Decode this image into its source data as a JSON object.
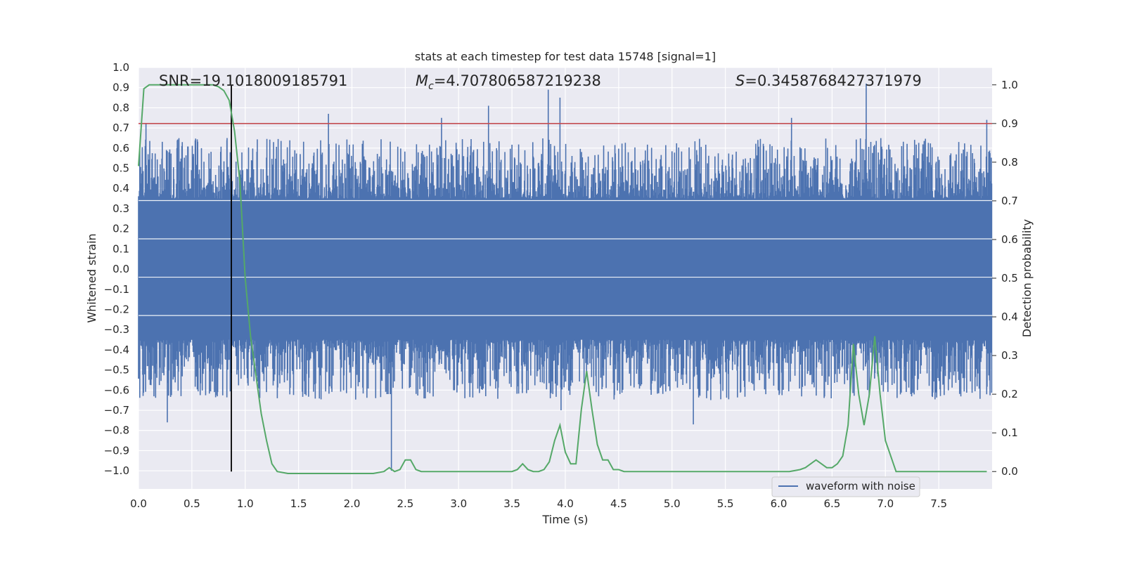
{
  "chart_data": {
    "type": "line",
    "title": "stats at each timestep for test data 15748 [signal=1]",
    "xlabel": "Time (s)",
    "ylabel_left": "Whitened strain",
    "ylabel_right": "Detection probability",
    "xlim": [
      0,
      8
    ],
    "ylim_left": [
      -1.09,
      1.0
    ],
    "ylim_right": [
      -0.045,
      1.045
    ],
    "x_ticks": [
      0.0,
      0.5,
      1.0,
      1.5,
      2.0,
      2.5,
      3.0,
      3.5,
      4.0,
      4.5,
      5.0,
      5.5,
      6.0,
      6.5,
      7.0,
      7.5
    ],
    "x_tick_labels": [
      "0.0",
      "0.5",
      "1.0",
      "1.5",
      "2.0",
      "2.5",
      "3.0",
      "3.5",
      "4.0",
      "4.5",
      "5.0",
      "5.5",
      "6.0",
      "6.5",
      "7.0",
      "7.5"
    ],
    "y_left_ticks": [
      1.0,
      0.9,
      0.8,
      0.7,
      0.6,
      0.5,
      0.4,
      0.3,
      0.2,
      0.1,
      0.0,
      -0.1,
      -0.2,
      -0.3,
      -0.4,
      -0.5,
      -0.6,
      -0.7,
      -0.8,
      -0.9,
      -1.0
    ],
    "y_left_tick_labels": [
      "1.0",
      "0.9",
      "0.8",
      "0.7",
      "0.6",
      "0.5",
      "0.4",
      "0.3",
      "0.2",
      "0.1",
      "0.0",
      "−0.1",
      "−0.2",
      "−0.3",
      "−0.4",
      "−0.5",
      "−0.6",
      "−0.7",
      "−0.8",
      "−0.9",
      "−1.0"
    ],
    "y_right_ticks": [
      1.0,
      0.9,
      0.8,
      0.7,
      0.6,
      0.5,
      0.4,
      0.3,
      0.2,
      0.1,
      0.0
    ],
    "y_right_tick_labels": [
      "1.0",
      "0.9",
      "0.8",
      "0.7",
      "0.6",
      "0.5",
      "0.4",
      "0.3",
      "0.2",
      "0.1",
      "0.0"
    ],
    "annotations": {
      "snr": "SNR=19.1018009185791",
      "mc_symbol": "M",
      "mc_sub": "c",
      "mc_value": "=4.707806587219238",
      "s_symbol": "S",
      "s_value": "=0.3458768427371979"
    },
    "legend": {
      "label": "waveform with noise",
      "placement": "lower-right"
    },
    "grid": true,
    "threshold_right": 0.9,
    "marker_time": 0.87,
    "waveform": {
      "name": "waveform with noise",
      "samples": 2048,
      "band": 0.35,
      "peaks": [
        {
          "t": 0.07,
          "v": 0.72
        },
        {
          "t": 0.27,
          "v": -0.76
        },
        {
          "t": 0.36,
          "v": 0.6
        },
        {
          "t": 0.83,
          "v": 0.65
        },
        {
          "t": 1.78,
          "v": 0.77
        },
        {
          "t": 2.37,
          "v": -1.0
        },
        {
          "t": 2.84,
          "v": 0.75
        },
        {
          "t": 3.28,
          "v": 0.81
        },
        {
          "t": 3.84,
          "v": 0.89
        },
        {
          "t": 3.95,
          "v": 0.85
        },
        {
          "t": 3.96,
          "v": -0.7
        },
        {
          "t": 5.2,
          "v": -0.77
        },
        {
          "t": 6.12,
          "v": 0.75
        },
        {
          "t": 6.82,
          "v": 0.92
        },
        {
          "t": 7.95,
          "v": 0.74
        }
      ]
    },
    "probability": {
      "x": [
        0.0,
        0.05,
        0.1,
        0.2,
        0.3,
        0.4,
        0.5,
        0.6,
        0.7,
        0.75,
        0.8,
        0.85,
        0.9,
        0.95,
        1.0,
        1.05,
        1.1,
        1.15,
        1.2,
        1.25,
        1.3,
        1.4,
        1.5,
        1.6,
        1.7,
        1.8,
        1.9,
        2.0,
        2.1,
        2.2,
        2.3,
        2.35,
        2.4,
        2.45,
        2.5,
        2.55,
        2.6,
        2.65,
        2.7,
        2.75,
        2.8,
        2.9,
        3.0,
        3.1,
        3.2,
        3.3,
        3.4,
        3.5,
        3.55,
        3.6,
        3.65,
        3.7,
        3.75,
        3.8,
        3.85,
        3.9,
        3.95,
        4.0,
        4.05,
        4.1,
        4.15,
        4.2,
        4.25,
        4.3,
        4.35,
        4.4,
        4.45,
        4.5,
        4.55,
        4.6,
        4.7,
        4.8,
        4.9,
        5.0,
        5.2,
        5.4,
        5.6,
        5.8,
        6.0,
        6.1,
        6.2,
        6.25,
        6.3,
        6.35,
        6.4,
        6.45,
        6.5,
        6.55,
        6.6,
        6.65,
        6.7,
        6.75,
        6.8,
        6.85,
        6.9,
        6.95,
        7.0,
        7.05,
        7.1,
        7.15,
        7.2,
        7.25,
        7.3,
        7.5,
        7.7,
        7.95
      ],
      "y": [
        0.79,
        0.99,
        1.0,
        1.0,
        1.0,
        1.0,
        1.0,
        1.0,
        1.0,
        0.995,
        0.985,
        0.96,
        0.88,
        0.75,
        0.5,
        0.35,
        0.25,
        0.15,
        0.08,
        0.02,
        0.0,
        -0.005,
        -0.005,
        -0.005,
        -0.005,
        -0.005,
        -0.005,
        -0.005,
        -0.005,
        -0.005,
        0.0,
        0.01,
        0.0,
        0.005,
        0.03,
        0.03,
        0.005,
        0.0,
        0.0,
        0.0,
        0.0,
        0.0,
        0.0,
        0.0,
        0.0,
        0.0,
        0.0,
        0.0,
        0.005,
        0.02,
        0.005,
        0.0,
        0.0,
        0.005,
        0.025,
        0.08,
        0.12,
        0.05,
        0.02,
        0.02,
        0.16,
        0.26,
        0.16,
        0.07,
        0.03,
        0.03,
        0.005,
        0.005,
        0.0,
        0.0,
        0.0,
        0.0,
        0.0,
        0.0,
        0.0,
        0.0,
        0.0,
        0.0,
        0.0,
        0.0,
        0.005,
        0.01,
        0.02,
        0.03,
        0.02,
        0.01,
        0.01,
        0.02,
        0.04,
        0.12,
        0.33,
        0.2,
        0.12,
        0.2,
        0.35,
        0.2,
        0.08,
        0.04,
        0.0,
        0.0,
        0.0,
        0.0,
        0.0,
        0.0,
        0.0,
        0.0
      ],
      "color": "#55a868"
    },
    "colors": {
      "waveform": "#4c72b0",
      "probability": "#55a868",
      "threshold": "#c44e52",
      "marker": "#000000",
      "background": "#eaeaf2",
      "grid": "#ffffff"
    }
  }
}
